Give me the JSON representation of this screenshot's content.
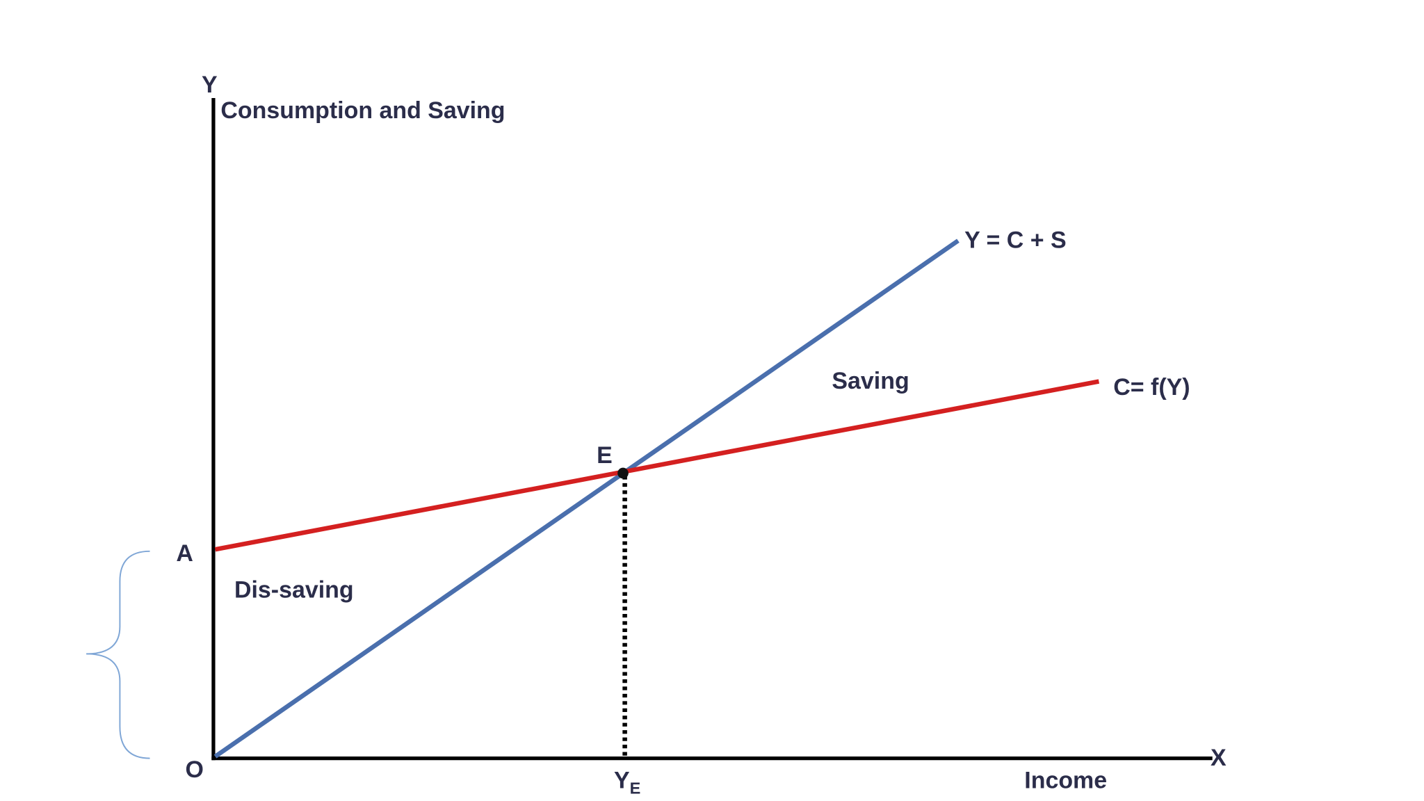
{
  "axes": {
    "y_label": "Y",
    "y_title": "Consumption and Saving",
    "x_label": "X",
    "x_title": "Income",
    "origin": "O"
  },
  "curves": [
    {
      "label": "Y = C + S"
    },
    {
      "label": "C= f(Y)"
    }
  ],
  "points": {
    "intercept": "A",
    "equilibrium": "E",
    "equilibrium_income": {
      "main": "Y",
      "sub": "E"
    }
  },
  "regions": {
    "above": "Saving",
    "below": "Dis-saving"
  }
}
